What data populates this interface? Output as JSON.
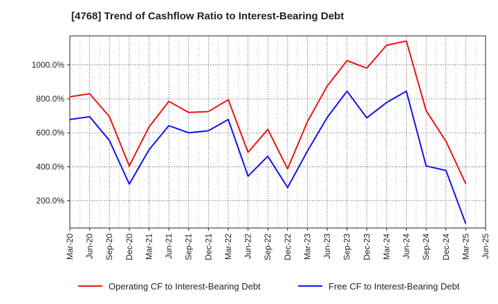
{
  "chart_data": {
    "type": "line",
    "title": "[4768]  Trend of Cashflow Ratio to Interest-Bearing Debt",
    "xlabel": "",
    "ylabel": "",
    "categories": [
      "Mar-20",
      "Jun-20",
      "Sep-20",
      "Dec-20",
      "Mar-21",
      "Jun-21",
      "Sep-21",
      "Dec-21",
      "Mar-22",
      "Jun-22",
      "Sep-22",
      "Dec-22",
      "Mar-23",
      "Jun-23",
      "Sep-23",
      "Dec-23",
      "Mar-24",
      "Jun-24",
      "Sep-24",
      "Dec-24",
      "Mar-25",
      "Jun-25"
    ],
    "ylim": [
      40,
      1170
    ],
    "yticks": [
      200,
      400,
      600,
      800,
      1000
    ],
    "ytick_labels": [
      "200.0%",
      "400.0%",
      "600.0%",
      "800.0%",
      "1000.0%"
    ],
    "grid": true,
    "legend_position": "bottom",
    "series": [
      {
        "name": "Operating CF to Interest-Bearing Debt",
        "color": "#ee1111",
        "values": [
          812,
          830,
          695,
          405,
          635,
          785,
          720,
          725,
          795,
          485,
          620,
          388,
          665,
          875,
          1025,
          980,
          1115,
          1140,
          730,
          550,
          300,
          null
        ]
      },
      {
        "name": "Free CF to Interest-Bearing Debt",
        "color": "#1111ee",
        "values": [
          678,
          695,
          555,
          298,
          500,
          642,
          600,
          612,
          678,
          345,
          462,
          278,
          492,
          690,
          845,
          688,
          778,
          845,
          405,
          378,
          65,
          null
        ]
      }
    ]
  }
}
